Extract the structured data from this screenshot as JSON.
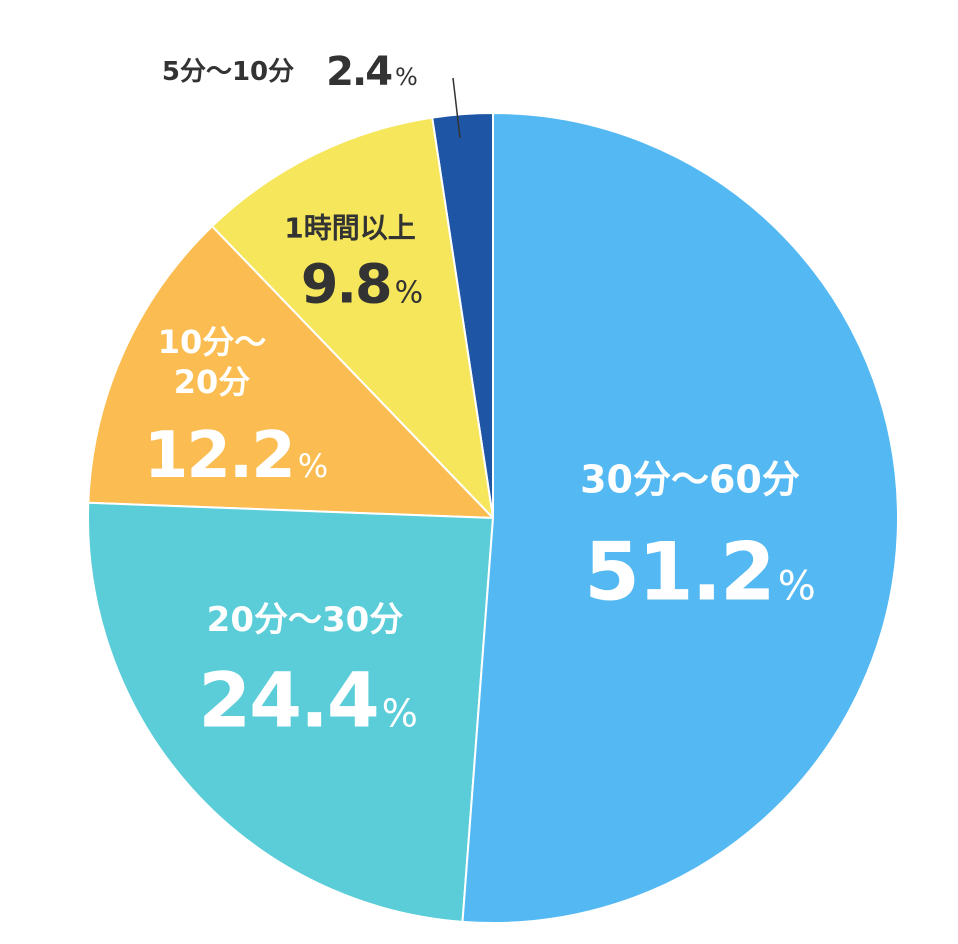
{
  "chart_data": {
    "type": "pie",
    "categories": [
      "30分～60分",
      "20分～30分",
      "10分～20分",
      "1時間以上",
      "5分～10分"
    ],
    "values": [
      51.2,
      24.4,
      12.2,
      9.8,
      2.4
    ],
    "colors": [
      "#54b8f2",
      "#5bcdd8",
      "#fbbd52",
      "#f5e65b",
      "#1e56a5"
    ],
    "unit": "%"
  }
}
